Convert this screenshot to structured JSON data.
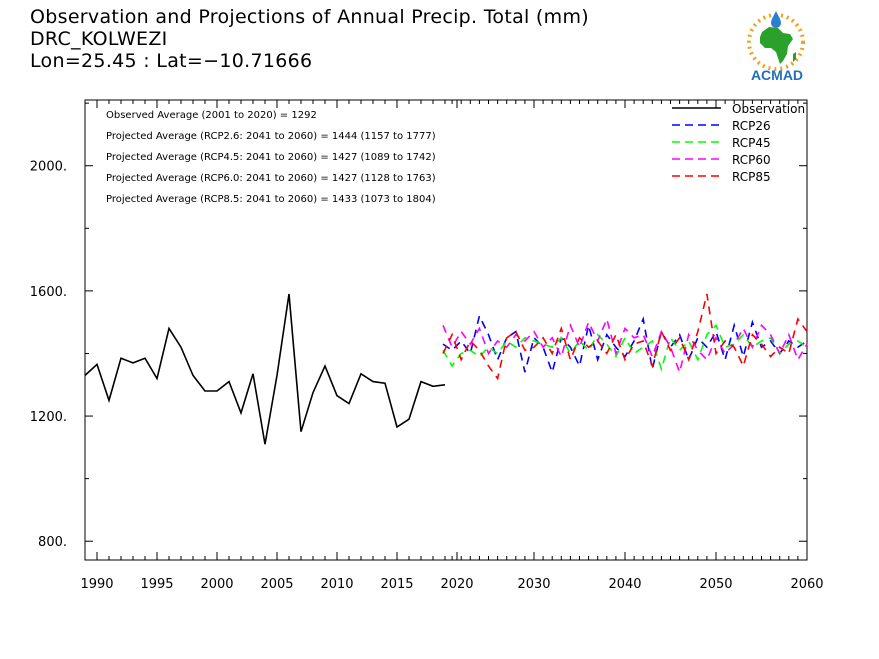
{
  "header": {
    "line1": "Observation and Projections of Annual Precip. Total (mm)",
    "line2": "DRC_KOLWEZI",
    "line3": "Lon=25.45 : Lat=−10.71666"
  },
  "logo": {
    "text": "ACMAD"
  },
  "annotations": [
    "Observed Average (2001 to 2020) = 1292",
    "Projected Average (RCP2.6: 2041 to 2060) = 1444 (1157 to 1777)",
    "Projected Average (RCP4.5: 2041 to 2060) = 1427 (1089 to 1742)",
    "Projected Average (RCP6.0: 2041 to 2060) = 1427 (1128 to 1763)",
    "Projected Average (RCP8.5: 2041 to 2060) = 1433 (1073 to 1804)"
  ],
  "chart_data": {
    "type": "line",
    "ylim": [
      740,
      2210
    ],
    "yticks": [
      800,
      1200,
      1600,
      2000
    ],
    "ytick_labels": [
      "800.",
      "1200.",
      "1600.",
      "2000."
    ],
    "x_axis_left": {
      "range": [
        1990,
        2020
      ],
      "ticks": [
        1990,
        1995,
        2000,
        2005,
        2010,
        2015,
        2020
      ],
      "labels": [
        "1990",
        "1995",
        "2000",
        "2005",
        "2010",
        "2015",
        "2020"
      ]
    },
    "x_axis_right": {
      "range": [
        2021,
        2060
      ],
      "ticks": [
        2030,
        2040,
        2050,
        2060
      ],
      "labels": [
        "2030",
        "2040",
        "2050",
        "2060"
      ]
    },
    "legend_position": "top-right",
    "series": [
      {
        "name": "Observation",
        "color": "#000000",
        "style": "solid",
        "segment": "observed",
        "x": [
          1989,
          1990,
          1991,
          1992,
          1993,
          1994,
          1995,
          1996,
          1997,
          1998,
          1999,
          2000,
          2001,
          2002,
          2003,
          2004,
          2005,
          2006,
          2007,
          2008,
          2009,
          2010,
          2011,
          2012,
          2013,
          2014,
          2015,
          2016,
          2017,
          2018,
          2019
        ],
        "values": [
          1330,
          1365,
          1250,
          1385,
          1370,
          1385,
          1320,
          1480,
          1420,
          1330,
          1280,
          1280,
          1310,
          1210,
          1335,
          1110,
          1330,
          1590,
          1150,
          1275,
          1360,
          1265,
          1240,
          1335,
          1310,
          1305,
          1165,
          1190,
          1310,
          1295,
          1300
        ]
      },
      {
        "name": "RCP26",
        "color": "#0000ff",
        "style": "dashed",
        "segment": "projected",
        "x": [
          2020,
          2021,
          2022,
          2023,
          2024,
          2025,
          2026,
          2027,
          2028,
          2029,
          2030,
          2031,
          2032,
          2033,
          2034,
          2035,
          2036,
          2037,
          2038,
          2039,
          2040,
          2041,
          2042,
          2043,
          2044,
          2045,
          2046,
          2047,
          2048,
          2049,
          2050,
          2051,
          2052,
          2053,
          2054,
          2055,
          2056,
          2057,
          2058,
          2059,
          2060
        ],
        "values": [
          1430,
          1410,
          1440,
          1400,
          1520,
          1460,
          1380,
          1450,
          1470,
          1340,
          1450,
          1420,
          1340,
          1450,
          1420,
          1360,
          1490,
          1380,
          1460,
          1420,
          1390,
          1440,
          1510,
          1350,
          1470,
          1420,
          1460,
          1380,
          1450,
          1420,
          1470,
          1380,
          1490,
          1390,
          1500,
          1420,
          1440,
          1400,
          1440,
          1420,
          1440
        ]
      },
      {
        "name": "RCP45",
        "color": "#00ff00",
        "style": "dashed",
        "segment": "projected",
        "x": [
          2020,
          2021,
          2022,
          2023,
          2024,
          2025,
          2026,
          2027,
          2028,
          2029,
          2030,
          2031,
          2032,
          2033,
          2034,
          2035,
          2036,
          2037,
          2038,
          2039,
          2040,
          2041,
          2042,
          2043,
          2044,
          2045,
          2046,
          2047,
          2048,
          2049,
          2050,
          2051,
          2052,
          2053,
          2054,
          2055,
          2056,
          2057,
          2058,
          2059,
          2060
        ],
        "values": [
          1410,
          1360,
          1400,
          1410,
          1390,
          1420,
          1400,
          1440,
          1420,
          1450,
          1440,
          1430,
          1420,
          1450,
          1400,
          1440,
          1410,
          1460,
          1430,
          1390,
          1450,
          1400,
          1420,
          1440,
          1350,
          1450,
          1410,
          1440,
          1380,
          1460,
          1490,
          1420,
          1430,
          1460,
          1420,
          1440,
          1450,
          1400,
          1430,
          1440,
          1420
        ]
      },
      {
        "name": "RCP60",
        "color": "#ff00ff",
        "style": "dashed",
        "segment": "projected",
        "x": [
          2020,
          2021,
          2022,
          2023,
          2024,
          2025,
          2026,
          2027,
          2028,
          2029,
          2030,
          2031,
          2032,
          2033,
          2034,
          2035,
          2036,
          2037,
          2038,
          2039,
          2040,
          2041,
          2042,
          2043,
          2044,
          2045,
          2046,
          2047,
          2048,
          2049,
          2050,
          2051,
          2052,
          2053,
          2054,
          2055,
          2056,
          2057,
          2058,
          2059,
          2060
        ],
        "values": [
          1490,
          1420,
          1470,
          1430,
          1480,
          1400,
          1440,
          1420,
          1460,
          1440,
          1470,
          1420,
          1450,
          1390,
          1490,
          1420,
          1500,
          1440,
          1510,
          1400,
          1480,
          1450,
          1460,
          1390,
          1470,
          1420,
          1340,
          1460,
          1410,
          1380,
          1450,
          1400,
          1430,
          1480,
          1420,
          1490,
          1460,
          1400,
          1460,
          1380,
          1430
        ]
      },
      {
        "name": "RCP85",
        "color": "#ff0000",
        "style": "dashed",
        "segment": "projected",
        "x": [
          2020,
          2021,
          2022,
          2023,
          2024,
          2025,
          2026,
          2027,
          2028,
          2029,
          2030,
          2031,
          2032,
          2033,
          2034,
          2035,
          2036,
          2037,
          2038,
          2039,
          2040,
          2041,
          2042,
          2043,
          2044,
          2045,
          2046,
          2047,
          2048,
          2049,
          2050,
          2051,
          2052,
          2053,
          2054,
          2055,
          2056,
          2057,
          2058,
          2059,
          2060
        ],
        "values": [
          1400,
          1460,
          1380,
          1440,
          1410,
          1360,
          1320,
          1450,
          1470,
          1410,
          1420,
          1450,
          1400,
          1480,
          1380,
          1450,
          1420,
          1440,
          1400,
          1460,
          1380,
          1430,
          1440,
          1360,
          1470,
          1410,
          1450,
          1380,
          1470,
          1590,
          1400,
          1440,
          1420,
          1360,
          1460,
          1430,
          1390,
          1420,
          1400,
          1510,
          1470
        ]
      }
    ]
  }
}
